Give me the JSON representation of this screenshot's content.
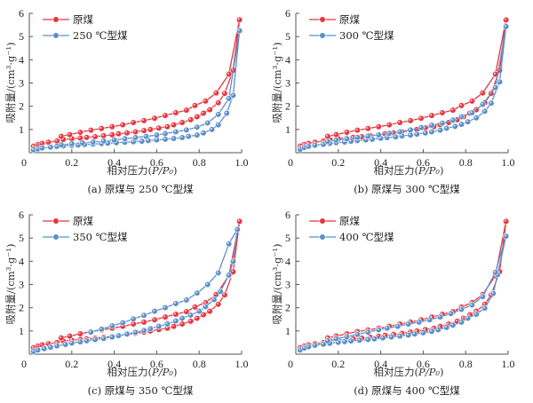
{
  "chart_data": [
    {
      "type": "line",
      "panel_label": "(a) 原煤与 250 ℃型煤",
      "xlabel": "相对压力(P/P₀)",
      "ylabel": "吸附量/(cm³·g⁻¹)",
      "xlim": [
        0,
        1.0
      ],
      "ylim": [
        0,
        6
      ],
      "xticks": [
        "0",
        "0.2",
        "0.4",
        "0.6",
        "0.8",
        "1.0"
      ],
      "yticks": [
        "0",
        "1",
        "2",
        "3",
        "4",
        "5",
        "6"
      ],
      "legend_position": "top-left",
      "series": [
        {
          "name": "原煤",
          "color": "#e8343f",
          "x": [
            0.02,
            0.04,
            0.06,
            0.09,
            0.13,
            0.16,
            0.2,
            0.24,
            0.27,
            0.31,
            0.35,
            0.39,
            0.42,
            0.46,
            0.5,
            0.54,
            0.57,
            0.61,
            0.65,
            0.68,
            0.72,
            0.76,
            0.79,
            0.82,
            0.85,
            0.89,
            0.92,
            0.96,
            0.99,
            0.94,
            0.88,
            0.83,
            0.78,
            0.74,
            0.69,
            0.64,
            0.59,
            0.54,
            0.49,
            0.44,
            0.39,
            0.34,
            0.29,
            0.24,
            0.19,
            0.15
          ],
          "y": [
            0.28,
            0.35,
            0.4,
            0.45,
            0.5,
            0.57,
            0.6,
            0.63,
            0.66,
            0.69,
            0.73,
            0.77,
            0.81,
            0.85,
            0.9,
            0.95,
            1.0,
            1.06,
            1.12,
            1.2,
            1.3,
            1.42,
            1.55,
            1.7,
            1.85,
            2.15,
            2.55,
            3.55,
            5.72,
            3.38,
            2.57,
            2.22,
            2.03,
            1.83,
            1.72,
            1.6,
            1.48,
            1.38,
            1.3,
            1.2,
            1.12,
            1.04,
            0.97,
            0.88,
            0.78,
            0.7
          ]
        },
        {
          "name": "250 ℃型煤",
          "color": "#5b8fc9",
          "x": [
            0.02,
            0.04,
            0.06,
            0.1,
            0.13,
            0.16,
            0.2,
            0.23,
            0.26,
            0.3,
            0.34,
            0.37,
            0.41,
            0.45,
            0.49,
            0.53,
            0.56,
            0.6,
            0.64,
            0.68,
            0.72,
            0.75,
            0.79,
            0.82,
            0.86,
            0.89,
            0.93,
            0.96,
            0.99,
            0.94,
            0.89,
            0.84,
            0.79,
            0.74,
            0.69,
            0.64,
            0.6,
            0.55,
            0.5,
            0.45,
            0.4,
            0.35,
            0.3,
            0.25,
            0.2,
            0.15
          ],
          "y": [
            0.12,
            0.16,
            0.2,
            0.24,
            0.27,
            0.29,
            0.31,
            0.33,
            0.35,
            0.37,
            0.39,
            0.41,
            0.43,
            0.45,
            0.47,
            0.49,
            0.52,
            0.55,
            0.58,
            0.61,
            0.65,
            0.7,
            0.76,
            0.85,
            1.0,
            1.2,
            1.7,
            2.47,
            5.25,
            2.33,
            1.65,
            1.28,
            1.1,
            0.98,
            0.9,
            0.82,
            0.76,
            0.7,
            0.65,
            0.6,
            0.55,
            0.5,
            0.46,
            0.42,
            0.38,
            0.34
          ]
        }
      ]
    },
    {
      "type": "line",
      "panel_label": "(b) 原煤与 300 ℃型煤",
      "xlabel": "相对压力(P/P₀)",
      "ylabel": "吸附量/(cm³·g⁻¹)",
      "xlim": [
        0,
        1.0
      ],
      "ylim": [
        0,
        6
      ],
      "xticks": [
        "0",
        "0.2",
        "0.4",
        "0.6",
        "0.8",
        "1.0"
      ],
      "yticks": [
        "0",
        "1",
        "2",
        "3",
        "4",
        "5",
        "6"
      ],
      "legend_position": "top-left",
      "series": [
        {
          "name": "原煤",
          "color": "#e8343f",
          "x": [
            0.02,
            0.04,
            0.06,
            0.09,
            0.13,
            0.16,
            0.2,
            0.24,
            0.27,
            0.31,
            0.35,
            0.39,
            0.42,
            0.46,
            0.5,
            0.54,
            0.57,
            0.61,
            0.65,
            0.68,
            0.72,
            0.76,
            0.79,
            0.82,
            0.85,
            0.89,
            0.92,
            0.96,
            0.99,
            0.94,
            0.88,
            0.83,
            0.78,
            0.74,
            0.69,
            0.64,
            0.59,
            0.54,
            0.49,
            0.44,
            0.39,
            0.34,
            0.29,
            0.24,
            0.19,
            0.15
          ],
          "y": [
            0.28,
            0.35,
            0.4,
            0.45,
            0.5,
            0.57,
            0.6,
            0.63,
            0.66,
            0.69,
            0.73,
            0.77,
            0.81,
            0.85,
            0.9,
            0.95,
            1.0,
            1.06,
            1.12,
            1.2,
            1.3,
            1.42,
            1.55,
            1.7,
            1.85,
            2.15,
            2.55,
            3.55,
            5.72,
            3.38,
            2.57,
            2.22,
            2.03,
            1.83,
            1.72,
            1.6,
            1.48,
            1.38,
            1.3,
            1.2,
            1.12,
            1.04,
            0.97,
            0.88,
            0.78,
            0.7
          ]
        },
        {
          "name": "300 ℃型煤",
          "color": "#5b8fc9",
          "x": [
            0.02,
            0.04,
            0.06,
            0.09,
            0.13,
            0.16,
            0.19,
            0.23,
            0.26,
            0.29,
            0.33,
            0.36,
            0.4,
            0.43,
            0.47,
            0.5,
            0.54,
            0.57,
            0.61,
            0.64,
            0.68,
            0.71,
            0.75,
            0.78,
            0.81,
            0.85,
            0.89,
            0.92,
            0.96,
            0.99,
            0.94,
            0.88,
            0.83,
            0.78,
            0.74,
            0.69,
            0.64,
            0.59,
            0.54,
            0.49,
            0.44,
            0.39,
            0.34,
            0.29,
            0.24,
            0.19,
            0.15
          ],
          "y": [
            0.15,
            0.22,
            0.27,
            0.32,
            0.36,
            0.4,
            0.43,
            0.46,
            0.49,
            0.52,
            0.55,
            0.58,
            0.62,
            0.65,
            0.68,
            0.72,
            0.76,
            0.8,
            0.85,
            0.9,
            0.97,
            1.05,
            1.13,
            1.22,
            1.33,
            1.5,
            1.78,
            2.13,
            3.05,
            5.43,
            2.8,
            2.08,
            1.72,
            1.55,
            1.4,
            1.27,
            1.18,
            1.08,
            0.98,
            0.9,
            0.83,
            0.77,
            0.71,
            0.66,
            0.6,
            0.54,
            0.48
          ]
        }
      ]
    },
    {
      "type": "line",
      "panel_label": "(c) 原煤与 350 ℃型煤",
      "xlabel": "相对压力(P/P₀)",
      "ylabel": "吸附量/(cm³·g⁻¹)",
      "xlim": [
        0,
        1.0
      ],
      "ylim": [
        0,
        6
      ],
      "xticks": [
        "0",
        "0.2",
        "0.4",
        "0.6",
        "0.8",
        "1.0"
      ],
      "yticks": [
        "0",
        "1",
        "2",
        "3",
        "4",
        "5",
        "6"
      ],
      "legend_position": "top-left",
      "series": [
        {
          "name": "原煤",
          "color": "#e8343f",
          "x": [
            0.02,
            0.04,
            0.06,
            0.09,
            0.13,
            0.16,
            0.2,
            0.24,
            0.27,
            0.31,
            0.35,
            0.39,
            0.42,
            0.46,
            0.5,
            0.54,
            0.57,
            0.61,
            0.65,
            0.68,
            0.72,
            0.76,
            0.79,
            0.82,
            0.85,
            0.89,
            0.92,
            0.96,
            0.99,
            0.94,
            0.88,
            0.83,
            0.78,
            0.74,
            0.69,
            0.64,
            0.59,
            0.54,
            0.49,
            0.44,
            0.39,
            0.34,
            0.29,
            0.24,
            0.19,
            0.15
          ],
          "y": [
            0.28,
            0.35,
            0.4,
            0.45,
            0.5,
            0.57,
            0.6,
            0.63,
            0.66,
            0.69,
            0.73,
            0.77,
            0.81,
            0.85,
            0.9,
            0.95,
            1.0,
            1.06,
            1.12,
            1.2,
            1.3,
            1.42,
            1.55,
            1.7,
            1.85,
            2.15,
            2.55,
            3.55,
            5.72,
            3.38,
            2.57,
            2.22,
            2.03,
            1.83,
            1.72,
            1.6,
            1.48,
            1.38,
            1.3,
            1.2,
            1.12,
            1.04,
            0.97,
            0.88,
            0.78,
            0.7
          ]
        },
        {
          "name": "350 ℃型煤",
          "color": "#5b8fc9",
          "x": [
            0.02,
            0.04,
            0.07,
            0.1,
            0.13,
            0.17,
            0.2,
            0.24,
            0.27,
            0.31,
            0.35,
            0.39,
            0.42,
            0.46,
            0.5,
            0.54,
            0.57,
            0.61,
            0.65,
            0.69,
            0.72,
            0.76,
            0.8,
            0.83,
            0.87,
            0.9,
            0.94,
            0.96,
            0.98,
            0.94,
            0.89,
            0.84,
            0.79,
            0.74,
            0.69,
            0.64,
            0.59,
            0.54,
            0.49,
            0.44,
            0.39,
            0.34,
            0.29
          ],
          "y": [
            0.12,
            0.18,
            0.24,
            0.3,
            0.36,
            0.42,
            0.48,
            0.53,
            0.58,
            0.63,
            0.68,
            0.74,
            0.8,
            0.87,
            0.94,
            1.02,
            1.1,
            1.2,
            1.3,
            1.43,
            1.55,
            1.68,
            1.85,
            2.05,
            2.35,
            2.7,
            3.4,
            4.0,
            5.37,
            4.75,
            3.5,
            3.0,
            2.63,
            2.33,
            2.18,
            2.0,
            1.85,
            1.67,
            1.52,
            1.35,
            1.22,
            1.08,
            0.95
          ]
        }
      ]
    },
    {
      "type": "line",
      "panel_label": "(d) 原煤与 400 ℃型煤",
      "xlabel": "相对压力(P/P₀)",
      "ylabel": "吸附量/(cm³·g⁻¹)",
      "xlim": [
        0,
        1.0
      ],
      "ylim": [
        0,
        6
      ],
      "xticks": [
        "0",
        "0.2",
        "0.4",
        "0.6",
        "0.8",
        "1.0"
      ],
      "yticks": [
        "0",
        "1",
        "2",
        "3",
        "4",
        "5",
        "6"
      ],
      "legend_position": "top-left",
      "series": [
        {
          "name": "原煤",
          "color": "#e8343f",
          "x": [
            0.02,
            0.04,
            0.06,
            0.09,
            0.13,
            0.16,
            0.2,
            0.24,
            0.27,
            0.31,
            0.35,
            0.39,
            0.42,
            0.46,
            0.5,
            0.54,
            0.57,
            0.61,
            0.65,
            0.68,
            0.72,
            0.76,
            0.79,
            0.82,
            0.85,
            0.89,
            0.92,
            0.96,
            0.99,
            0.94,
            0.88,
            0.83,
            0.78,
            0.74,
            0.69,
            0.64,
            0.59,
            0.54,
            0.49,
            0.44,
            0.39,
            0.34,
            0.29,
            0.24,
            0.19,
            0.15
          ],
          "y": [
            0.28,
            0.35,
            0.4,
            0.45,
            0.5,
            0.57,
            0.6,
            0.63,
            0.66,
            0.69,
            0.73,
            0.77,
            0.81,
            0.85,
            0.9,
            0.95,
            1.0,
            1.06,
            1.12,
            1.2,
            1.3,
            1.42,
            1.55,
            1.7,
            1.85,
            2.15,
            2.55,
            3.55,
            5.72,
            3.38,
            2.57,
            2.22,
            2.03,
            1.83,
            1.72,
            1.6,
            1.48,
            1.38,
            1.3,
            1.2,
            1.12,
            1.04,
            0.97,
            0.88,
            0.78,
            0.7
          ]
        },
        {
          "name": "400 ℃型煤",
          "color": "#5b8fc9",
          "x": [
            0.02,
            0.04,
            0.06,
            0.09,
            0.13,
            0.16,
            0.2,
            0.23,
            0.26,
            0.3,
            0.34,
            0.37,
            0.41,
            0.45,
            0.49,
            0.53,
            0.56,
            0.6,
            0.64,
            0.67,
            0.71,
            0.74,
            0.78,
            0.81,
            0.85,
            0.89,
            0.93,
            0.95,
            0.99,
            0.94,
            0.88,
            0.83,
            0.78,
            0.73,
            0.68,
            0.63,
            0.58,
            0.53,
            0.48,
            0.43,
            0.39,
            0.34,
            0.29,
            0.24,
            0.19,
            0.15
          ],
          "y": [
            0.18,
            0.26,
            0.32,
            0.38,
            0.43,
            0.47,
            0.51,
            0.54,
            0.57,
            0.6,
            0.63,
            0.66,
            0.7,
            0.74,
            0.78,
            0.82,
            0.87,
            0.92,
            0.98,
            1.05,
            1.15,
            1.25,
            1.38,
            1.55,
            1.72,
            1.98,
            2.62,
            3.42,
            5.08,
            3.52,
            2.48,
            2.12,
            1.93,
            1.75,
            1.6,
            1.48,
            1.38,
            1.3,
            1.2,
            1.12,
            1.05,
            0.95,
            0.85,
            0.75,
            0.67,
            0.58
          ]
        }
      ]
    }
  ]
}
